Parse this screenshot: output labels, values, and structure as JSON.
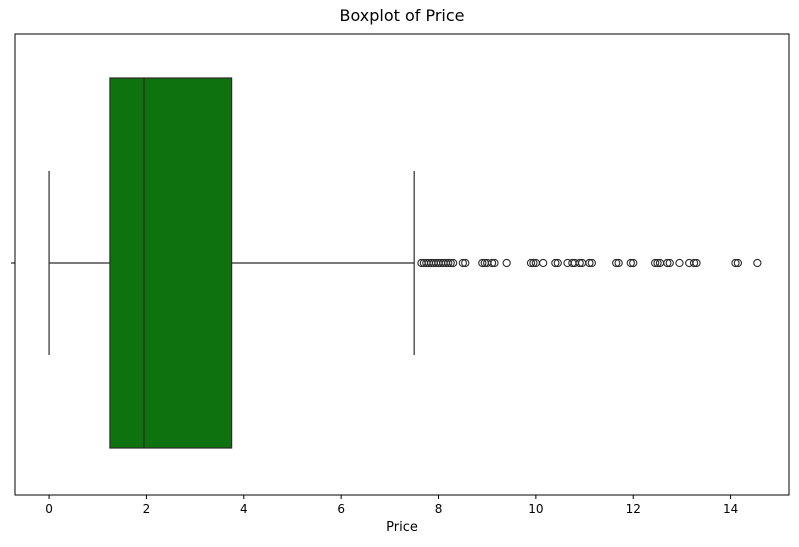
{
  "chart_data": {
    "type": "boxplot",
    "title": "Boxplot of Price",
    "xlabel": "Price",
    "ylabel": "",
    "xlim": [
      -0.7,
      15.2
    ],
    "xticks": [
      0,
      2,
      4,
      6,
      8,
      10,
      12,
      14
    ],
    "xtick_labels": [
      "0",
      "2",
      "4",
      "6",
      "8",
      "10",
      "12",
      "14"
    ],
    "grid": false,
    "box": {
      "whisker_low": 0.0,
      "q1": 1.25,
      "median": 1.95,
      "q3": 3.75,
      "whisker_high": 7.5,
      "color": "#0e730e"
    },
    "outliers": [
      7.65,
      7.7,
      7.75,
      7.8,
      7.85,
      7.9,
      7.95,
      8.0,
      8.05,
      8.1,
      8.15,
      8.2,
      8.25,
      8.3,
      8.5,
      8.55,
      8.9,
      8.95,
      9.0,
      9.1,
      9.15,
      9.4,
      9.9,
      9.95,
      10.0,
      10.15,
      10.4,
      10.45,
      10.65,
      10.75,
      10.8,
      10.9,
      10.95,
      11.1,
      11.15,
      11.65,
      11.7,
      11.95,
      12.0,
      12.45,
      12.5,
      12.55,
      12.7,
      12.75,
      12.95,
      13.15,
      13.25,
      13.3,
      14.1,
      14.15,
      14.55
    ]
  }
}
